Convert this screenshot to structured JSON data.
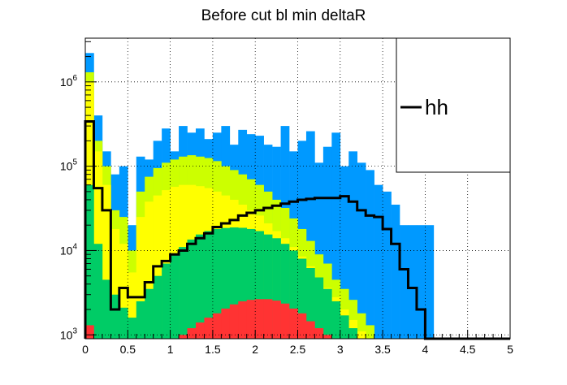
{
  "chart_data": {
    "type": "bar",
    "title": "Before cut bl min deltaR",
    "xlabel": "",
    "ylabel": "",
    "x_range": [
      0,
      5
    ],
    "y_range": [
      900,
      3300000
    ],
    "y_scale": "log",
    "bin_width": 0.1,
    "grid": true,
    "legend_position": "top-right",
    "x_ticks": [
      0,
      0.5,
      1,
      1.5,
      2,
      2.5,
      3,
      3.5,
      4,
      4.5,
      5
    ],
    "x_tick_labels": [
      "0",
      "0.5",
      "1",
      "1.5",
      "2",
      "2.5",
      "3",
      "3.5",
      "4",
      "4.5",
      "5"
    ],
    "y_ticks": [
      1000,
      10000,
      100000,
      1000000
    ],
    "y_tick_labels": [
      {
        "base": "10",
        "exp": "3"
      },
      {
        "base": "10",
        "exp": "4"
      },
      {
        "base": "10",
        "exp": "5"
      },
      {
        "base": "10",
        "exp": "6"
      }
    ],
    "stack": [
      {
        "color": "#0099ff",
        "values": [
          2200000,
          400000,
          150000,
          80000,
          100000,
          20000,
          130000,
          120000,
          200000,
          280000,
          150000,
          300000,
          250000,
          280000,
          210000,
          250000,
          300000,
          180000,
          270000,
          240000,
          230000,
          180000,
          170000,
          300000,
          150000,
          200000,
          260000,
          110000,
          170000,
          250000,
          100000,
          150000,
          110000,
          90000,
          60000,
          50000,
          35000,
          20000,
          20000,
          20000,
          20000,
          0,
          0,
          0,
          0,
          0,
          0,
          0,
          0,
          0
        ]
      },
      {
        "color": "#ccff00",
        "values": [
          1300000,
          200000,
          100000,
          30000,
          25000,
          10000,
          50000,
          75000,
          95000,
          110000,
          120000,
          130000,
          135000,
          130000,
          125000,
          115000,
          100000,
          90000,
          80000,
          70000,
          60000,
          50000,
          40000,
          32000,
          24000,
          18000,
          13000,
          9000,
          7000,
          4500,
          3500,
          2600,
          1800,
          1300,
          0,
          0,
          0,
          0,
          0,
          0,
          0,
          0,
          0,
          0,
          0,
          0,
          0,
          0,
          0,
          0
        ]
      },
      {
        "color": "#ffff00",
        "values": [
          1000000,
          150000,
          60000,
          18000,
          12000,
          5500,
          25000,
          38000,
          45000,
          52000,
          57000,
          60000,
          60000,
          58000,
          55000,
          50000,
          45000,
          40000,
          35000,
          30000,
          26000,
          21000,
          17000,
          14000,
          11000,
          8500,
          6500,
          4800,
          3600,
          2800,
          2000,
          1500,
          1100,
          0,
          0,
          0,
          0,
          0,
          0,
          0,
          0,
          0,
          0,
          0,
          0,
          0,
          0,
          0,
          0,
          0
        ]
      },
      {
        "color": "#00cc66",
        "values": [
          60000,
          12000,
          4500,
          3000,
          2100,
          1600,
          2500,
          3500,
          5000,
          7000,
          9000,
          11000,
          13500,
          15500,
          17000,
          18000,
          18500,
          18800,
          18600,
          18000,
          17000,
          15500,
          14000,
          12000,
          10000,
          8000,
          6200,
          4800,
          3500,
          2500,
          1700,
          1200,
          900,
          0,
          0,
          0,
          0,
          0,
          0,
          0,
          0,
          0,
          0,
          0,
          0,
          0,
          0,
          0,
          0,
          0
        ]
      },
      {
        "color": "#ff3333",
        "values": [
          1300,
          900,
          0,
          0,
          0,
          0,
          0,
          0,
          0,
          0,
          0,
          1000,
          1200,
          1400,
          1600,
          1800,
          2050,
          2300,
          2500,
          2600,
          2650,
          2650,
          2550,
          2350,
          2050,
          1800,
          1450,
          1200,
          1000,
          0,
          0,
          0,
          0,
          0,
          0,
          0,
          0,
          0,
          0,
          0,
          0,
          0,
          0,
          0,
          0,
          0,
          0,
          0,
          0,
          0
        ]
      }
    ],
    "series": [
      {
        "name": "hh",
        "type": "step",
        "color": "#000000",
        "values": [
          340000,
          55000,
          30000,
          2000,
          3600,
          2800,
          2800,
          4200,
          6500,
          7500,
          9000,
          10000,
          12000,
          14000,
          16000,
          19000,
          21000,
          23000,
          26000,
          28000,
          30000,
          32000,
          34000,
          36000,
          38000,
          40000,
          41000,
          42000,
          42000,
          42000,
          44000,
          38000,
          30000,
          26000,
          25000,
          18000,
          12000,
          6000,
          3600,
          2000,
          0,
          0,
          0,
          0,
          0,
          0,
          0,
          0,
          0,
          0
        ]
      }
    ]
  }
}
